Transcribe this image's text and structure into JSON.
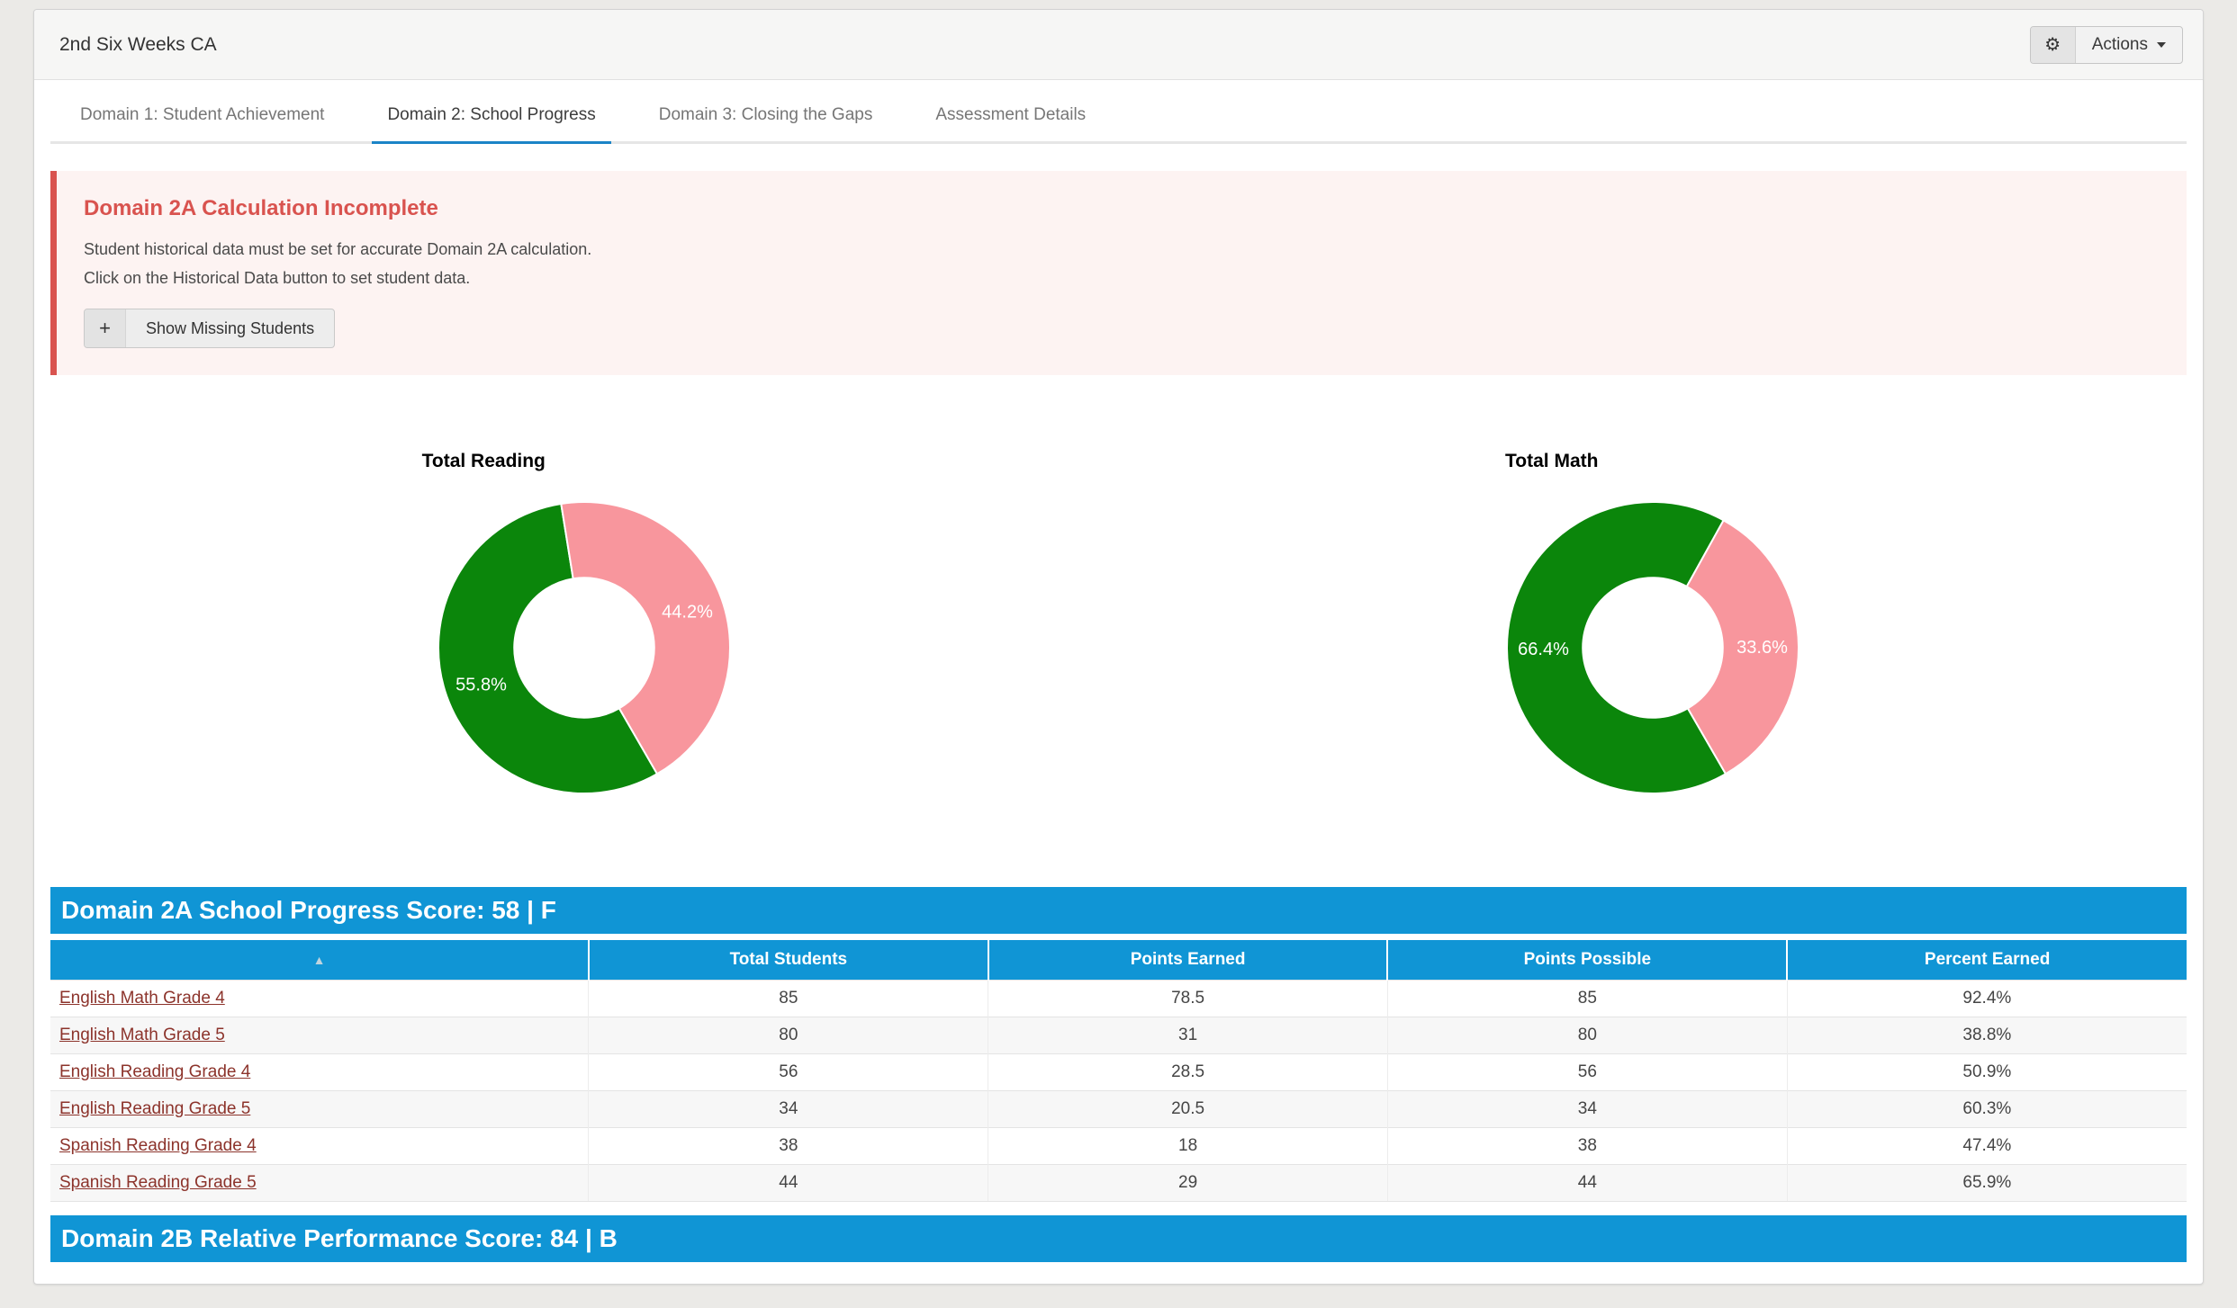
{
  "header": {
    "title": "2nd Six Weeks CA",
    "actions_label": "Actions"
  },
  "tabs": [
    {
      "label": "Domain 1: Student Achievement",
      "active": false
    },
    {
      "label": "Domain 2: School Progress",
      "active": true
    },
    {
      "label": "Domain 3: Closing the Gaps",
      "active": false
    },
    {
      "label": "Assessment Details",
      "active": false
    }
  ],
  "alert": {
    "heading": "Domain 2A Calculation Incomplete",
    "line1": "Student historical data must be set for accurate Domain 2A calculation.",
    "line2": "Click on the Historical Data button to set student data.",
    "button_icon": "+",
    "button_label": "Show Missing Students"
  },
  "chart_data": [
    {
      "type": "pie",
      "subtype": "donut",
      "title": "Total Reading",
      "slices": [
        {
          "value": 55.8,
          "label": "55.8%",
          "color": "#0b860b"
        },
        {
          "value": 44.2,
          "label": "44.2%",
          "color": "#f8969d"
        }
      ],
      "start_angle_deg": 150,
      "inner_radius_ratio": 0.48,
      "legend": false
    },
    {
      "type": "pie",
      "subtype": "donut",
      "title": "Total Math",
      "slices": [
        {
          "value": 66.4,
          "label": "66.4%",
          "color": "#0b860b"
        },
        {
          "value": 33.6,
          "label": "33.6%",
          "color": "#f8969d"
        }
      ],
      "start_angle_deg": 150,
      "inner_radius_ratio": 0.48,
      "legend": false
    }
  ],
  "sections": {
    "domain2a_title": "Domain 2A School Progress Score: 58 | F",
    "domain2b_title": "Domain 2B Relative Performance Score: 84 | B"
  },
  "table": {
    "sort_icon": "▲",
    "columns": [
      "",
      "Total Students",
      "Points Earned",
      "Points Possible",
      "Percent Earned"
    ],
    "rows": [
      {
        "name": "English Math Grade 4",
        "total_students": "85",
        "points_earned": "78.5",
        "points_possible": "85",
        "percent_earned": "92.4%"
      },
      {
        "name": "English Math Grade 5",
        "total_students": "80",
        "points_earned": "31",
        "points_possible": "80",
        "percent_earned": "38.8%"
      },
      {
        "name": "English Reading Grade 4",
        "total_students": "56",
        "points_earned": "28.5",
        "points_possible": "56",
        "percent_earned": "50.9%"
      },
      {
        "name": "English Reading Grade 5",
        "total_students": "34",
        "points_earned": "20.5",
        "points_possible": "34",
        "percent_earned": "60.3%"
      },
      {
        "name": "Spanish Reading Grade 4",
        "total_students": "38",
        "points_earned": "18",
        "points_possible": "38",
        "percent_earned": "47.4%"
      },
      {
        "name": "Spanish Reading Grade 5",
        "total_students": "44",
        "points_earned": "29",
        "points_possible": "44",
        "percent_earned": "65.9%"
      }
    ]
  },
  "colors": {
    "banner_blue": "#1095d5",
    "tab_blue": "#1b84c7",
    "green": "#0b860b",
    "pink": "#f8969d",
    "alert_red": "#d9534f",
    "alert_bg": "#fdf3f2",
    "link_maroon": "#8c332b"
  }
}
